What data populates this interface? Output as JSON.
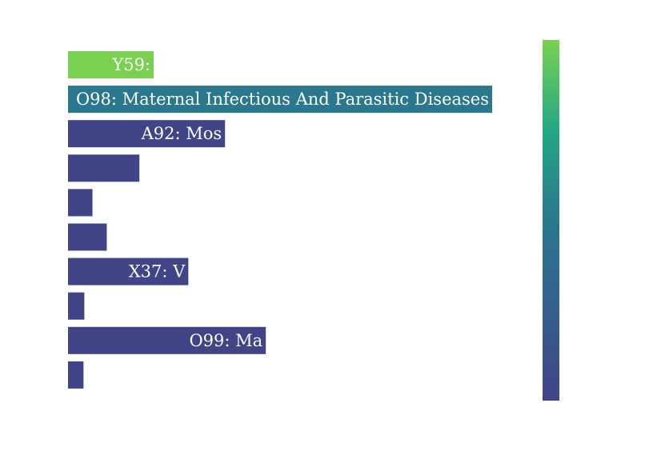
{
  "chart_data": {
    "type": "bar",
    "orientation": "horizontal",
    "grid": false,
    "legend": "none",
    "colorbar": {
      "position": "right",
      "colorscale": [
        "#440154",
        "#3b528b",
        "#21918c",
        "#5ec962",
        "#7ad151"
      ]
    },
    "categories": [
      "Y59",
      "O98",
      "A92",
      "",
      "",
      "",
      "X37",
      "",
      "O99",
      ""
    ],
    "values": [
      21,
      104,
      38.5,
      17.5,
      6,
      9.5,
      29.5,
      4,
      48.5,
      3.8
    ],
    "bar_labels": [
      "Y59:",
      "O98: Maternal Infectious And Parasitic Diseases",
      "A92:  Mos",
      "",
      "",
      "",
      "X37: V",
      "",
      "O99:  Ma",
      ""
    ],
    "xlim": [
      0,
      104
    ],
    "colors": [
      "#7ad151",
      "#2a788e",
      "#414487",
      "#414487",
      "#414487",
      "#414487",
      "#414487",
      "#414487",
      "#414487",
      "#414487"
    ]
  }
}
